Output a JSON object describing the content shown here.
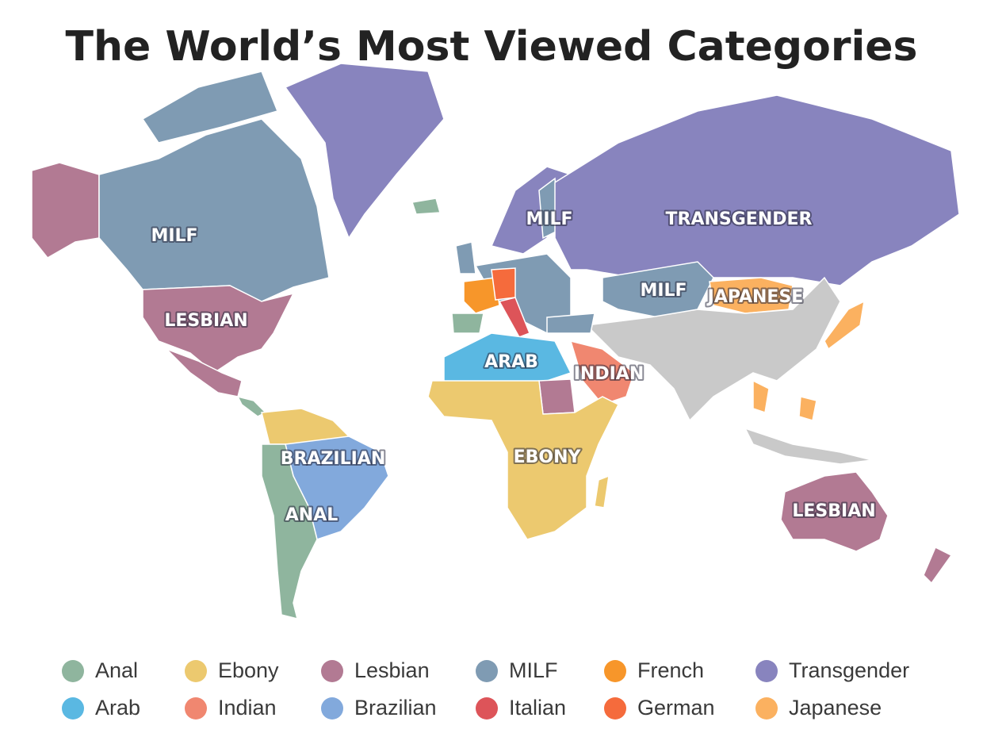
{
  "title": "The World’s Most Viewed Categories",
  "map_labels": [
    {
      "text": "MILF"
    },
    {
      "text": "LESBIAN"
    },
    {
      "text": "MILF"
    },
    {
      "text": "TRANSGENDER"
    },
    {
      "text": "MILF"
    },
    {
      "text": "JAPANESE"
    },
    {
      "text": "ARAB"
    },
    {
      "text": "INDIAN"
    },
    {
      "text": "BRAZILIAN"
    },
    {
      "text": "EBONY"
    },
    {
      "text": "ANAL"
    },
    {
      "text": "LESBIAN"
    }
  ],
  "legend": [
    {
      "name": "Anal",
      "color": "#8fb59e"
    },
    {
      "name": "Ebony",
      "color": "#ecc96f"
    },
    {
      "name": "Lesbian",
      "color": "#b27a93"
    },
    {
      "name": "MILF",
      "color": "#7f9bb3"
    },
    {
      "name": "French",
      "color": "#f7962a"
    },
    {
      "name": "Transgender",
      "color": "#8884be"
    },
    {
      "name": "Arab",
      "color": "#5ab8e2"
    },
    {
      "name": "Indian",
      "color": "#f08770"
    },
    {
      "name": "Brazilian",
      "color": "#82a9dc"
    },
    {
      "name": "Italian",
      "color": "#dd5459"
    },
    {
      "name": "German",
      "color": "#f56b3c"
    },
    {
      "name": "Japanese",
      "color": "#fbb160"
    }
  ]
}
